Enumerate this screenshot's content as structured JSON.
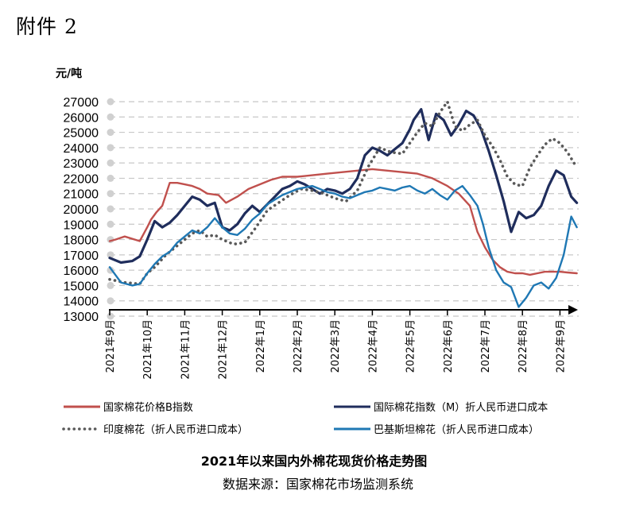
{
  "attachment_label": "附件 2",
  "chart_data": {
    "type": "line",
    "title": "2021年以来国内外棉花现货价格走势图",
    "source": "数据来源：国家棉花市场监测系统",
    "ylabel": "元/吨",
    "xlabel": "",
    "ylim": [
      13000,
      27000
    ],
    "yticks": [
      13000,
      14000,
      15000,
      16000,
      17000,
      18000,
      19000,
      20000,
      21000,
      22000,
      23000,
      24000,
      25000,
      26000,
      27000
    ],
    "xlim": [
      0,
      12.5
    ],
    "x_tick_positions": [
      0,
      1,
      2,
      3,
      4,
      5,
      6,
      7,
      8,
      9,
      10,
      11,
      12
    ],
    "x_tick_labels": [
      "2021年9月",
      "2021年10月",
      "2021年11月",
      "2021年12月",
      "2022年1月",
      "2022年2月",
      "2022年3月",
      "2022年4月",
      "2022年5月",
      "2022年6月",
      "2022年7月",
      "2022年8月",
      "2022年9月"
    ],
    "grid": "horizontal dashed",
    "legend_position": "bottom",
    "series": [
      {
        "name": "国家棉花价格B指数",
        "color": "#c0504d",
        "style": "solid",
        "x": [
          0,
          0.15,
          0.4,
          0.8,
          1.0,
          1.1,
          1.25,
          1.4,
          1.6,
          1.8,
          2.0,
          2.2,
          2.4,
          2.6,
          2.9,
          3.1,
          3.4,
          3.7,
          4.0,
          4.3,
          4.6,
          5.0,
          5.4,
          5.8,
          6.2,
          6.6,
          7.0,
          7.4,
          7.8,
          8.2,
          8.6,
          9.0,
          9.3,
          9.6,
          9.8,
          10.0,
          10.2,
          10.4,
          10.6,
          10.8,
          11.0,
          11.2,
          11.4,
          11.6,
          11.8,
          12.0,
          12.2,
          12.45
        ],
        "values": [
          17900,
          18000,
          18200,
          17900,
          18800,
          19300,
          19800,
          20200,
          21700,
          21700,
          21600,
          21500,
          21300,
          21000,
          20900,
          20400,
          20800,
          21300,
          21600,
          21900,
          22100,
          22100,
          22200,
          22300,
          22400,
          22500,
          22600,
          22500,
          22400,
          22300,
          22000,
          21500,
          21000,
          20200,
          18500,
          17500,
          16700,
          16200,
          15900,
          15800,
          15800,
          15700,
          15800,
          15900,
          15900,
          15900,
          15850,
          15800
        ]
      },
      {
        "name": "国际棉花指数（M）折人民币进口成本",
        "color": "#1f2d5c",
        "style": "solid",
        "x": [
          0,
          0.3,
          0.6,
          0.8,
          1.0,
          1.2,
          1.4,
          1.6,
          1.8,
          2.0,
          2.2,
          2.4,
          2.6,
          2.8,
          3.0,
          3.2,
          3.4,
          3.6,
          3.8,
          4.0,
          4.2,
          4.4,
          4.6,
          4.8,
          5.0,
          5.2,
          5.4,
          5.6,
          5.8,
          6.0,
          6.2,
          6.4,
          6.6,
          6.8,
          7.0,
          7.2,
          7.4,
          7.6,
          7.8,
          8.0,
          8.1,
          8.3,
          8.5,
          8.7,
          8.9,
          9.1,
          9.3,
          9.5,
          9.7,
          9.9,
          10.1,
          10.3,
          10.5,
          10.7,
          10.9,
          11.1,
          11.3,
          11.5,
          11.7,
          11.9,
          12.1,
          12.3,
          12.45
        ],
        "values": [
          16800,
          16500,
          16600,
          16900,
          18000,
          19200,
          18800,
          19100,
          19600,
          20200,
          20800,
          20600,
          20200,
          20400,
          18800,
          18600,
          19000,
          19700,
          20200,
          19800,
          20300,
          20800,
          21300,
          21500,
          21800,
          21600,
          21300,
          21000,
          21300,
          21200,
          21000,
          21300,
          22000,
          23500,
          24000,
          23800,
          23500,
          23900,
          24300,
          25200,
          25800,
          26500,
          24500,
          26200,
          25800,
          24800,
          25500,
          26400,
          26100,
          25200,
          23800,
          22200,
          20500,
          18500,
          19800,
          19400,
          19600,
          20200,
          21500,
          22500,
          22200,
          20800,
          20400
        ]
      },
      {
        "name": "印度棉花（折人民币进口成本）",
        "color": "#595959",
        "style": "dotted",
        "x": [
          0,
          0.4,
          0.8,
          1.0,
          1.2,
          1.5,
          1.8,
          2.0,
          2.2,
          2.4,
          2.6,
          2.8,
          3.0,
          3.3,
          3.6,
          3.9,
          4.2,
          4.5,
          4.8,
          5.1,
          5.4,
          5.7,
          6.0,
          6.3,
          6.6,
          6.9,
          7.2,
          7.5,
          7.8,
          8.0,
          8.2,
          8.4,
          8.6,
          8.8,
          9.0,
          9.2,
          9.4,
          9.6,
          9.8,
          10.0,
          10.2,
          10.4,
          10.6,
          10.8,
          11.0,
          11.2,
          11.4,
          11.6,
          11.8,
          12.0,
          12.2,
          12.45
        ],
        "values": [
          15400,
          15200,
          15100,
          15800,
          16200,
          17000,
          17600,
          18000,
          18400,
          18600,
          18200,
          18300,
          18000,
          17700,
          17800,
          18800,
          19900,
          20400,
          20900,
          21300,
          21200,
          21000,
          20700,
          20500,
          21200,
          22800,
          24000,
          23700,
          23600,
          24300,
          25000,
          25600,
          25400,
          26300,
          27000,
          25400,
          25100,
          25500,
          25800,
          24800,
          24100,
          23200,
          22100,
          21600,
          21500,
          22700,
          23500,
          24200,
          24600,
          24300,
          23700,
          22700
        ]
      },
      {
        "name": "巴基斯坦棉花（折人民币进口成本）",
        "color": "#1f78b4",
        "style": "solid",
        "x": [
          0,
          0.3,
          0.6,
          0.8,
          1.0,
          1.2,
          1.4,
          1.6,
          1.8,
          2.0,
          2.2,
          2.4,
          2.6,
          2.8,
          3.0,
          3.2,
          3.4,
          3.6,
          3.8,
          4.0,
          4.2,
          4.4,
          4.6,
          4.8,
          5.0,
          5.2,
          5.4,
          5.6,
          5.8,
          6.0,
          6.2,
          6.4,
          6.6,
          6.8,
          7.0,
          7.2,
          7.4,
          7.6,
          7.8,
          8.0,
          8.2,
          8.4,
          8.6,
          8.8,
          9.0,
          9.2,
          9.4,
          9.6,
          9.8,
          9.95,
          10.1,
          10.3,
          10.5,
          10.7,
          10.9,
          11.1,
          11.3,
          11.5,
          11.7,
          11.9,
          12.1,
          12.3,
          12.45
        ],
        "values": [
          16200,
          15200,
          15000,
          15100,
          15800,
          16400,
          16900,
          17200,
          17800,
          18200,
          18600,
          18400,
          18800,
          19400,
          18800,
          18400,
          18300,
          18700,
          19300,
          19700,
          20300,
          20600,
          20900,
          21100,
          21300,
          21400,
          21500,
          21300,
          21100,
          21000,
          20800,
          20700,
          20900,
          21100,
          21200,
          21400,
          21300,
          21200,
          21400,
          21500,
          21200,
          21000,
          21300,
          20900,
          20600,
          21200,
          21500,
          20900,
          20200,
          19000,
          17500,
          16000,
          15200,
          14900,
          13600,
          14200,
          15000,
          15200,
          14800,
          15500,
          17000,
          19500,
          18800
        ]
      }
    ]
  }
}
